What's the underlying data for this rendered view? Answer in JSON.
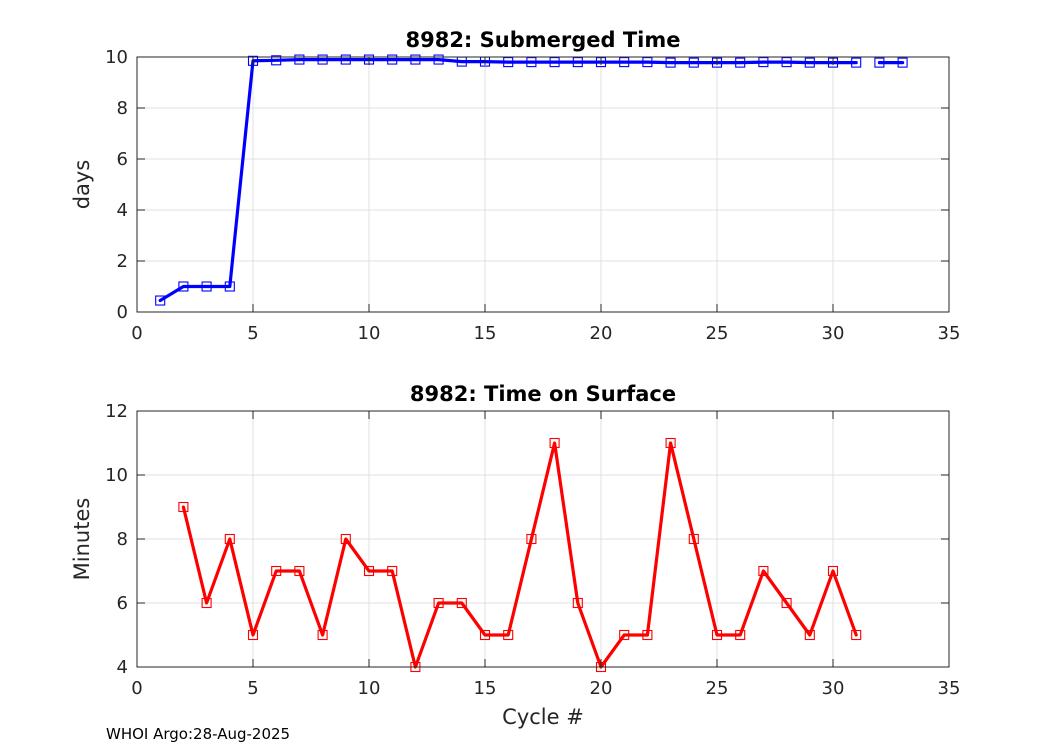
{
  "footer": "WHOI Argo:28-Aug-2025",
  "chart_data": [
    {
      "type": "line",
      "title": "8982: Submerged Time",
      "xlabel": "",
      "ylabel": "days",
      "xlim": [
        0,
        35
      ],
      "ylim": [
        0,
        10
      ],
      "xticks": [
        0,
        5,
        10,
        15,
        20,
        25,
        30,
        35
      ],
      "yticks": [
        0,
        2,
        4,
        6,
        8,
        10
      ],
      "grid": true,
      "color": "#0000ff",
      "series": [
        {
          "name": "Submerged Time",
          "segments": [
            {
              "x": [
                1,
                2,
                3,
                4,
                5,
                6,
                7,
                8,
                9,
                10,
                11,
                12,
                13,
                14,
                15,
                16,
                17,
                18,
                19,
                20,
                21,
                22,
                23,
                24,
                25,
                26,
                27,
                28,
                29,
                30,
                31
              ],
              "y": [
                0.45,
                1.0,
                1.0,
                1.0,
                9.85,
                9.87,
                9.9,
                9.9,
                9.9,
                9.9,
                9.9,
                9.9,
                9.9,
                9.82,
                9.82,
                9.8,
                9.8,
                9.8,
                9.8,
                9.8,
                9.8,
                9.8,
                9.78,
                9.78,
                9.78,
                9.78,
                9.8,
                9.8,
                9.78,
                9.78,
                9.78
              ]
            },
            {
              "x": [
                32,
                33
              ],
              "y": [
                9.78,
                9.78
              ]
            }
          ]
        }
      ]
    },
    {
      "type": "line",
      "title": "8982: Time on Surface",
      "xlabel": "Cycle #",
      "ylabel": "Minutes",
      "xlim": [
        0,
        35
      ],
      "ylim": [
        4,
        12
      ],
      "xticks": [
        0,
        5,
        10,
        15,
        20,
        25,
        30,
        35
      ],
      "yticks": [
        4,
        6,
        8,
        10,
        12
      ],
      "grid": true,
      "color": "#ff0000",
      "series": [
        {
          "name": "Time on Surface",
          "segments": [
            {
              "x": [
                2,
                3,
                4,
                5,
                6,
                7,
                8,
                9,
                10,
                11,
                12,
                13,
                14,
                15,
                16,
                17,
                18,
                19,
                20,
                21,
                22,
                23,
                24,
                25,
                26,
                27,
                28,
                29,
                30,
                31
              ],
              "y": [
                9,
                6,
                8,
                5,
                7,
                7,
                5,
                8,
                7,
                7,
                4,
                6,
                6,
                5,
                5,
                8,
                11,
                6,
                4,
                5,
                5,
                11,
                8,
                5,
                5,
                7,
                6,
                5,
                7,
                5
              ]
            }
          ]
        }
      ]
    }
  ]
}
